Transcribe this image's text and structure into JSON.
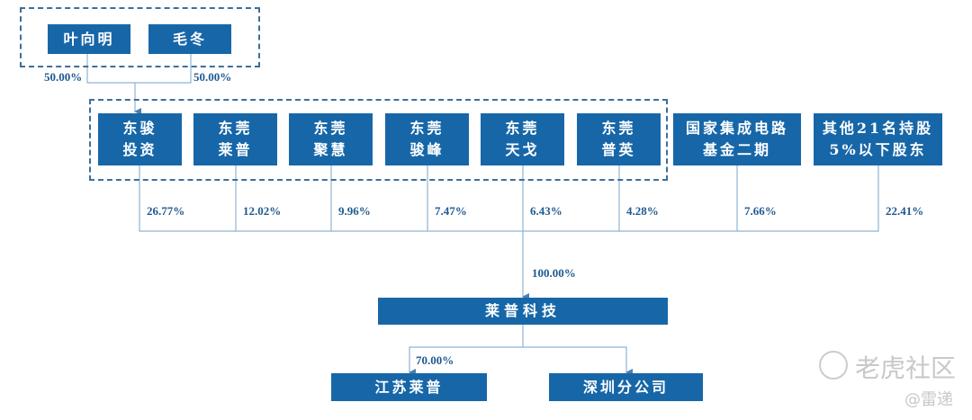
{
  "top_holders": [
    "叶向明",
    "毛冬"
  ],
  "top_pcts": [
    "50.00%",
    "50.00%"
  ],
  "shareholders": [
    {
      "line1": "东骏",
      "line2": "投资",
      "pct": "26.77%"
    },
    {
      "line1": "东莞",
      "line2": "莱普",
      "pct": "12.02%"
    },
    {
      "line1": "东莞",
      "line2": "聚慧",
      "pct": "9.96%"
    },
    {
      "line1": "东莞",
      "line2": "骏峰",
      "pct": "7.47%"
    },
    {
      "line1": "东莞",
      "line2": "天戈",
      "pct": "6.43%"
    },
    {
      "line1": "东莞",
      "line2": "普英",
      "pct": "4.28%"
    },
    {
      "line1": "国家集成电路",
      "line2": "基金二期",
      "pct": "7.66%"
    },
    {
      "line1": "其他21名持股",
      "line2": "5%以下股东",
      "pct": "22.41%"
    }
  ],
  "company": {
    "name": "莱普科技",
    "pct": "100.00%"
  },
  "subsidiaries": [
    {
      "name": "江苏莱普",
      "pct": "70.00%"
    },
    {
      "name": "深圳分公司"
    }
  ],
  "watermark": {
    "brand": "老虎社区",
    "author": "@雷递"
  },
  "colors": {
    "box": "#1767a8",
    "line": "#8fb3d5",
    "text": "#1f5a90"
  }
}
